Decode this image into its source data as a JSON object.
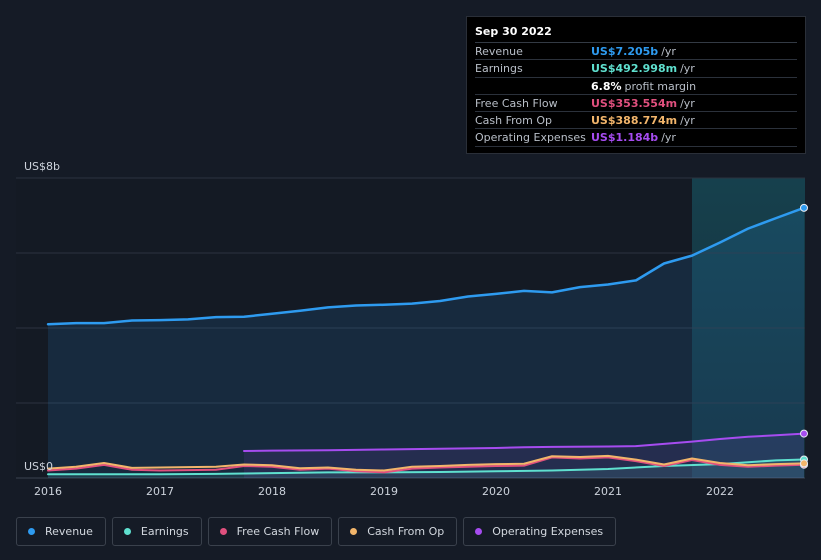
{
  "tooltip": {
    "date": "Sep 30 2022",
    "rows": [
      {
        "label": "Revenue",
        "value": "US$7.205b",
        "unit": "/yr",
        "color": "#2e9bf0"
      },
      {
        "label": "Earnings",
        "value": "US$492.998m",
        "unit": "/yr",
        "color": "#5fe0cf"
      },
      {
        "label": "",
        "value": "6.8%",
        "unit": "profit margin",
        "color": "#ffffff"
      },
      {
        "label": "Free Cash Flow",
        "value": "US$353.554m",
        "unit": "/yr",
        "color": "#e0507e"
      },
      {
        "label": "Cash From Op",
        "value": "US$388.774m",
        "unit": "/yr",
        "color": "#f2b56b"
      },
      {
        "label": "Operating Expenses",
        "value": "US$1.184b",
        "unit": "/yr",
        "color": "#a64cf0"
      }
    ]
  },
  "legend": [
    {
      "label": "Revenue",
      "color": "#2e9bf0"
    },
    {
      "label": "Earnings",
      "color": "#5fe0cf"
    },
    {
      "label": "Free Cash Flow",
      "color": "#e0507e"
    },
    {
      "label": "Cash From Op",
      "color": "#f2b56b"
    },
    {
      "label": "Operating Expenses",
      "color": "#a64cf0"
    }
  ],
  "chart_data": {
    "type": "area",
    "y_top_label": "US$8b",
    "y_bottom_label": "US$0",
    "ylim": [
      0,
      8
    ],
    "xlim": [
      2016.0,
      2022.75
    ],
    "x_ticks": [
      {
        "x": 2016,
        "label": "2016"
      },
      {
        "x": 2017,
        "label": "2017"
      },
      {
        "x": 2018,
        "label": "2018"
      },
      {
        "x": 2019,
        "label": "2019"
      },
      {
        "x": 2020,
        "label": "2020"
      },
      {
        "x": 2021,
        "label": "2021"
      },
      {
        "x": 2022,
        "label": "2022"
      }
    ],
    "grid_y": [
      2,
      4,
      6,
      8
    ],
    "highlight_start": 2021.75,
    "series": [
      {
        "name": "Revenue",
        "color": "#2e9bf0",
        "fill": true,
        "points": [
          [
            2016.0,
            4.1
          ],
          [
            2016.25,
            4.13
          ],
          [
            2016.5,
            4.13
          ],
          [
            2016.75,
            4.2
          ],
          [
            2017.0,
            4.21
          ],
          [
            2017.25,
            4.23
          ],
          [
            2017.5,
            4.29
          ],
          [
            2017.75,
            4.3
          ],
          [
            2018.0,
            4.38
          ],
          [
            2018.25,
            4.46
          ],
          [
            2018.5,
            4.55
          ],
          [
            2018.75,
            4.6
          ],
          [
            2019.0,
            4.62
          ],
          [
            2019.25,
            4.65
          ],
          [
            2019.5,
            4.72
          ],
          [
            2019.75,
            4.84
          ],
          [
            2020.0,
            4.91
          ],
          [
            2020.25,
            4.99
          ],
          [
            2020.5,
            4.95
          ],
          [
            2020.75,
            5.09
          ],
          [
            2021.0,
            5.16
          ],
          [
            2021.25,
            5.27
          ],
          [
            2021.5,
            5.72
          ],
          [
            2021.75,
            5.93
          ],
          [
            2022.0,
            6.28
          ],
          [
            2022.25,
            6.65
          ],
          [
            2022.5,
            6.93
          ],
          [
            2022.75,
            7.205
          ]
        ]
      },
      {
        "name": "Operating Expenses",
        "color": "#a64cf0",
        "fill": true,
        "points": [
          [
            2017.75,
            0.72
          ],
          [
            2018.0,
            0.73
          ],
          [
            2018.5,
            0.74
          ],
          [
            2019.0,
            0.76
          ],
          [
            2019.5,
            0.78
          ],
          [
            2020.0,
            0.8
          ],
          [
            2020.25,
            0.82
          ],
          [
            2020.5,
            0.83
          ],
          [
            2021.0,
            0.84
          ],
          [
            2021.25,
            0.85
          ],
          [
            2021.5,
            0.91
          ],
          [
            2021.75,
            0.97
          ],
          [
            2022.0,
            1.04
          ],
          [
            2022.25,
            1.1
          ],
          [
            2022.5,
            1.14
          ],
          [
            2022.75,
            1.184
          ]
        ]
      },
      {
        "name": "Earnings",
        "color": "#5fe0cf",
        "fill": true,
        "points": [
          [
            2016.0,
            0.1
          ],
          [
            2016.5,
            0.1
          ],
          [
            2017.0,
            0.1
          ],
          [
            2017.5,
            0.11
          ],
          [
            2018.0,
            0.13
          ],
          [
            2018.5,
            0.15
          ],
          [
            2019.0,
            0.15
          ],
          [
            2019.5,
            0.16
          ],
          [
            2020.0,
            0.18
          ],
          [
            2020.5,
            0.2
          ],
          [
            2021.0,
            0.24
          ],
          [
            2021.5,
            0.32
          ],
          [
            2022.0,
            0.37
          ],
          [
            2022.25,
            0.42
          ],
          [
            2022.5,
            0.47
          ],
          [
            2022.75,
            0.493
          ]
        ]
      },
      {
        "name": "Free Cash Flow",
        "color": "#e0507e",
        "fill": false,
        "points": [
          [
            2016.0,
            0.2
          ],
          [
            2016.25,
            0.25
          ],
          [
            2016.5,
            0.35
          ],
          [
            2016.75,
            0.22
          ],
          [
            2017.0,
            0.2
          ],
          [
            2017.5,
            0.22
          ],
          [
            2017.75,
            0.32
          ],
          [
            2018.0,
            0.3
          ],
          [
            2018.25,
            0.22
          ],
          [
            2018.5,
            0.25
          ],
          [
            2018.75,
            0.18
          ],
          [
            2019.0,
            0.15
          ],
          [
            2019.25,
            0.25
          ],
          [
            2019.5,
            0.28
          ],
          [
            2019.75,
            0.3
          ],
          [
            2020.0,
            0.32
          ],
          [
            2020.25,
            0.33
          ],
          [
            2020.5,
            0.55
          ],
          [
            2020.75,
            0.52
          ],
          [
            2021.0,
            0.55
          ],
          [
            2021.25,
            0.45
          ],
          [
            2021.5,
            0.32
          ],
          [
            2021.75,
            0.48
          ],
          [
            2022.0,
            0.35
          ],
          [
            2022.25,
            0.3
          ],
          [
            2022.5,
            0.33
          ],
          [
            2022.75,
            0.354
          ]
        ]
      },
      {
        "name": "Cash From Op",
        "color": "#f2b56b",
        "fill": false,
        "points": [
          [
            2016.0,
            0.25
          ],
          [
            2016.25,
            0.3
          ],
          [
            2016.5,
            0.4
          ],
          [
            2016.75,
            0.27
          ],
          [
            2017.0,
            0.28
          ],
          [
            2017.5,
            0.3
          ],
          [
            2017.75,
            0.36
          ],
          [
            2018.0,
            0.34
          ],
          [
            2018.25,
            0.26
          ],
          [
            2018.5,
            0.28
          ],
          [
            2018.75,
            0.22
          ],
          [
            2019.0,
            0.2
          ],
          [
            2019.25,
            0.3
          ],
          [
            2019.5,
            0.32
          ],
          [
            2019.75,
            0.35
          ],
          [
            2020.0,
            0.37
          ],
          [
            2020.25,
            0.38
          ],
          [
            2020.5,
            0.58
          ],
          [
            2020.75,
            0.56
          ],
          [
            2021.0,
            0.59
          ],
          [
            2021.25,
            0.49
          ],
          [
            2021.5,
            0.36
          ],
          [
            2021.75,
            0.52
          ],
          [
            2022.0,
            0.4
          ],
          [
            2022.25,
            0.34
          ],
          [
            2022.5,
            0.37
          ],
          [
            2022.75,
            0.389
          ]
        ]
      }
    ]
  }
}
